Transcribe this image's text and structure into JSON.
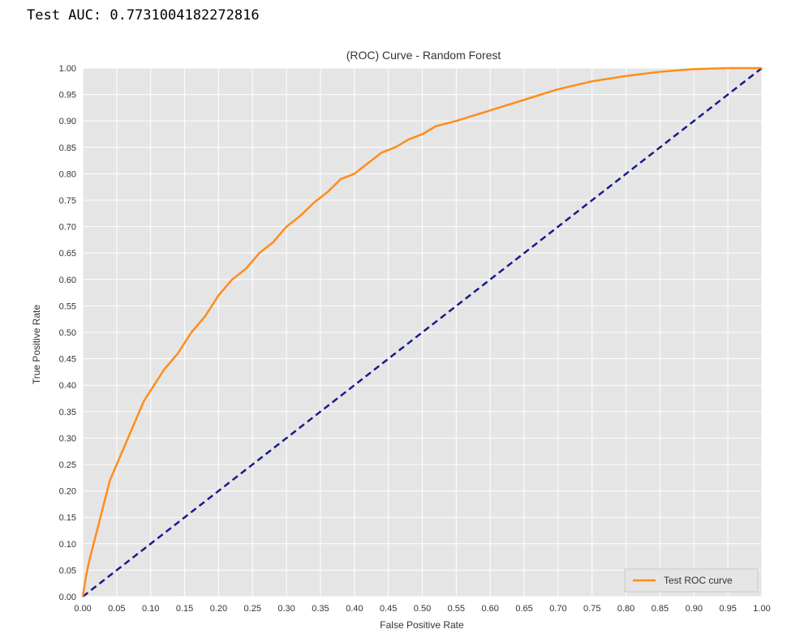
{
  "notebook": {
    "output_text": "Test AUC: 0.7731004182272816"
  },
  "colors": {
    "plot_background": "#e5e5e5",
    "grid": "#ffffff",
    "roc_curve": "#ff8c1a",
    "diagonal": "#1a1a8c",
    "text": "#333333"
  },
  "chart_data": {
    "type": "line",
    "title": "(ROC) Curve - Random Forest",
    "xlabel": "False Positive Rate",
    "ylabel": "True Positive Rate",
    "xlim": [
      0,
      1
    ],
    "ylim": [
      0,
      1
    ],
    "xticks": [
      "0.00",
      "0.05",
      "0.10",
      "0.15",
      "0.20",
      "0.25",
      "0.30",
      "0.35",
      "0.40",
      "0.45",
      "0.50",
      "0.55",
      "0.60",
      "0.65",
      "0.70",
      "0.75",
      "0.80",
      "0.85",
      "0.90",
      "0.95",
      "1.00"
    ],
    "yticks": [
      "0.00",
      "0.05",
      "0.10",
      "0.15",
      "0.20",
      "0.25",
      "0.30",
      "0.35",
      "0.40",
      "0.45",
      "0.50",
      "0.55",
      "0.60",
      "0.65",
      "0.70",
      "0.75",
      "0.80",
      "0.85",
      "0.90",
      "0.95",
      "1.00"
    ],
    "grid": true,
    "legend_position": "bottom-right",
    "series": [
      {
        "name": "Test ROC curve",
        "color": "#ff8c1a",
        "style": "solid",
        "x": [
          0,
          0.005,
          0.01,
          0.02,
          0.03,
          0.04,
          0.05,
          0.06,
          0.07,
          0.08,
          0.09,
          0.1,
          0.12,
          0.14,
          0.16,
          0.18,
          0.2,
          0.22,
          0.24,
          0.26,
          0.28,
          0.3,
          0.32,
          0.34,
          0.36,
          0.38,
          0.4,
          0.42,
          0.44,
          0.46,
          0.48,
          0.5,
          0.52,
          0.55,
          0.6,
          0.65,
          0.7,
          0.75,
          0.8,
          0.85,
          0.9,
          0.95,
          1.0
        ],
        "y": [
          0,
          0.04,
          0.07,
          0.12,
          0.17,
          0.22,
          0.25,
          0.28,
          0.31,
          0.34,
          0.37,
          0.39,
          0.43,
          0.46,
          0.5,
          0.53,
          0.57,
          0.6,
          0.62,
          0.65,
          0.67,
          0.7,
          0.72,
          0.745,
          0.765,
          0.79,
          0.8,
          0.82,
          0.84,
          0.85,
          0.865,
          0.875,
          0.89,
          0.9,
          0.92,
          0.94,
          0.96,
          0.975,
          0.985,
          0.993,
          0.998,
          1.0,
          1.0
        ]
      },
      {
        "name": "",
        "color": "#1a1a8c",
        "style": "dashed",
        "x": [
          0,
          1
        ],
        "y": [
          0,
          1
        ]
      }
    ]
  }
}
